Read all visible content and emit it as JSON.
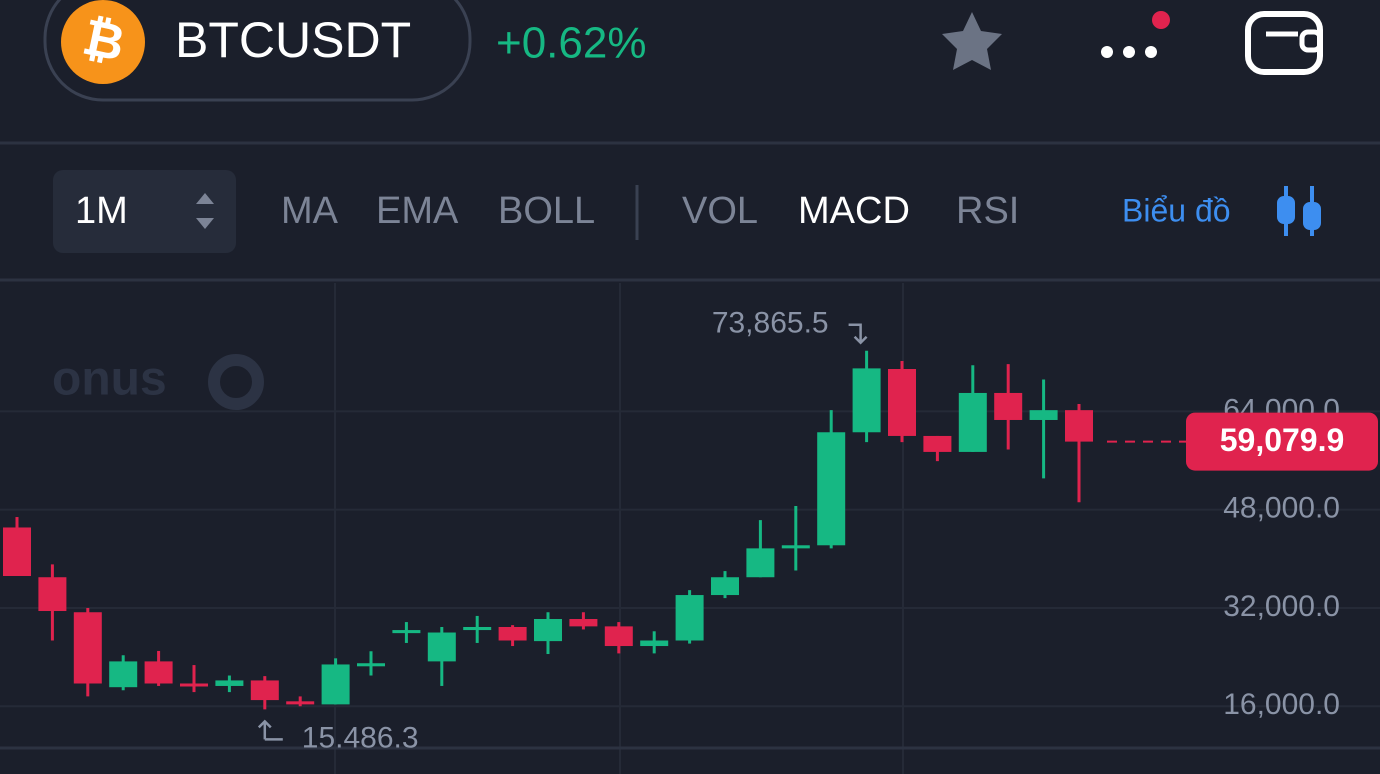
{
  "header": {
    "symbol_icon": "₿",
    "symbol": "BTCUSDT",
    "change": "+0.62%"
  },
  "toolbar": {
    "interval": "1M",
    "indicators_main": [
      "MA",
      "EMA",
      "BOLL"
    ],
    "indicators_sub": [
      "VOL",
      "MACD",
      "RSI"
    ],
    "active": "MACD",
    "chart_link": "Biểu đồ"
  },
  "watermark": "onus",
  "chart_data": {
    "type": "candlestick",
    "up_color": "#16b883",
    "down_color": "#e0234e",
    "grid": true,
    "ylim": [
      9200,
      84900
    ],
    "yticks": [
      {
        "value": 16000,
        "label": "16,000.0"
      },
      {
        "value": 32000,
        "label": "32,000.0"
      },
      {
        "value": 48000,
        "label": "48,000.0"
      },
      {
        "value": 64000,
        "label": "64,000.0"
      }
    ],
    "open": [
      45100,
      37000,
      31300,
      19100,
      23300,
      19700,
      19300,
      20200,
      16800,
      16300,
      22500,
      27900,
      23300,
      28400,
      28900,
      26600,
      30200,
      29000,
      25800,
      26700,
      34100,
      37000,
      41700,
      42200,
      60600,
      70900,
      60000,
      57400,
      67000,
      62600,
      64200
    ],
    "high": [
      46800,
      39100,
      32000,
      24300,
      25000,
      22700,
      21000,
      20900,
      17600,
      23800,
      24950,
      29700,
      28900,
      30700,
      29200,
      31300,
      31300,
      29700,
      28200,
      34900,
      38000,
      46300,
      48600,
      64200,
      73865.5,
      72200,
      60000,
      71500,
      71700,
      69200,
      65200
    ],
    "low": [
      37200,
      26700,
      17600,
      18600,
      19300,
      18300,
      18300,
      15486.3,
      16000,
      16300,
      21000,
      26300,
      19300,
      26300,
      25800,
      24500,
      28500,
      24600,
      24600,
      26200,
      33600,
      37000,
      38100,
      41700,
      59000,
      59000,
      55900,
      57400,
      57800,
      53100,
      49200
    ],
    "close": [
      37200,
      31500,
      19700,
      23300,
      19700,
      19300,
      20200,
      17000,
      16300,
      22800,
      23000,
      28400,
      28000,
      28900,
      26700,
      30200,
      29000,
      25800,
      26700,
      34100,
      37000,
      41700,
      42200,
      60600,
      71000,
      60000,
      57400,
      67000,
      62600,
      64200,
      59079.9
    ],
    "max_annotation": {
      "value": 73865.5,
      "label": "73,865.5"
    },
    "min_annotation": {
      "value": 15486.3,
      "label": "15.486.3"
    },
    "last_price": {
      "value": 59079.9,
      "label": "59,079.9"
    }
  }
}
